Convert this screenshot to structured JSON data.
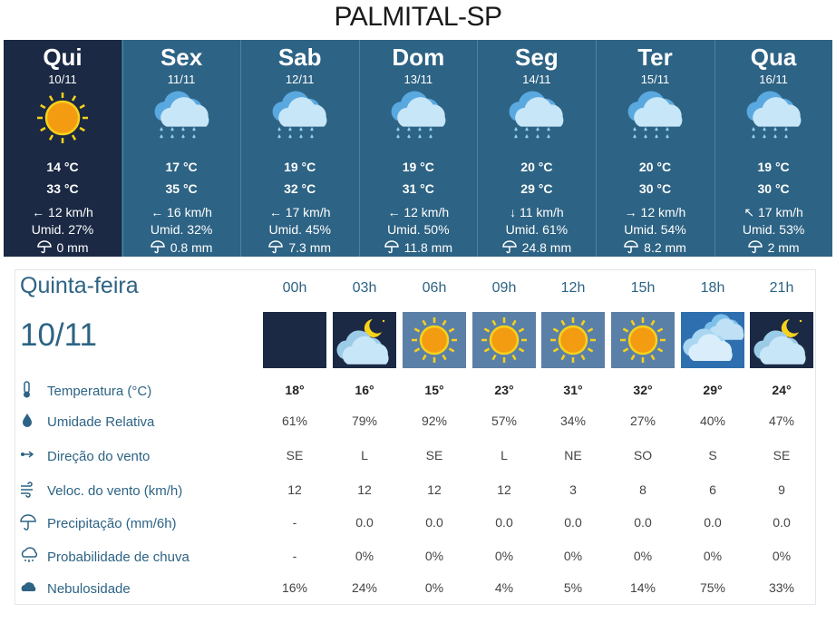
{
  "header": {
    "title": "PALMITAL-SP"
  },
  "days": [
    {
      "day": "Qui",
      "date": "10/11",
      "min": "14 °C",
      "max": "33 °C",
      "wind": "← 12 km/h",
      "humidity": "Umid. 27%",
      "rain": "0 mm"
    },
    {
      "day": "Sex",
      "date": "11/11",
      "min": "17 °C",
      "max": "35 °C",
      "wind": "← 16 km/h",
      "humidity": "Umid. 32%",
      "rain": "0.8 mm"
    },
    {
      "day": "Sab",
      "date": "12/11",
      "min": "19 °C",
      "max": "32 °C",
      "wind": "← 17 km/h",
      "humidity": "Umid. 45%",
      "rain": "7.3 mm"
    },
    {
      "day": "Dom",
      "date": "13/11",
      "min": "19 °C",
      "max": "31 °C",
      "wind": "← 12 km/h",
      "humidity": "Umid. 50%",
      "rain": "11.8 mm"
    },
    {
      "day": "Seg",
      "date": "14/11",
      "min": "20 °C",
      "max": "29 °C",
      "wind": "↓ 11 km/h",
      "humidity": "Umid. 61%",
      "rain": "24.8 mm"
    },
    {
      "day": "Ter",
      "date": "15/11",
      "min": "20 °C",
      "max": "30 °C",
      "wind": "→ 12 km/h",
      "humidity": "Umid. 54%",
      "rain": "8.2 mm"
    },
    {
      "day": "Qua",
      "date": "16/11",
      "min": "19 °C",
      "max": "30 °C",
      "wind": "↖ 17 km/h",
      "humidity": "Umid. 53%",
      "rain": "2 mm"
    }
  ],
  "detail": {
    "day": "Quinta-feira",
    "date": "10/11",
    "hours": [
      "00h",
      "03h",
      "06h",
      "09h",
      "12h",
      "15h",
      "18h",
      "21h"
    ],
    "rows": [
      {
        "label": "Temperatura (°C)",
        "values": [
          "18°",
          "16°",
          "15°",
          "23°",
          "31°",
          "32°",
          "29°",
          "24°"
        ]
      },
      {
        "label": "Umidade Relativa",
        "values": [
          "61%",
          "79%",
          "92%",
          "57%",
          "34%",
          "27%",
          "40%",
          "47%"
        ]
      },
      {
        "label": "Direção do vento",
        "values": [
          "SE",
          "L",
          "SE",
          "L",
          "NE",
          "SO",
          "S",
          "SE"
        ]
      },
      {
        "label": "Veloc. do vento (km/h)",
        "values": [
          "12",
          "12",
          "12",
          "12",
          "3",
          "8",
          "6",
          "9"
        ]
      },
      {
        "label": "Precipitação (mm/6h)",
        "values": [
          "-",
          "0.0",
          "0.0",
          "0.0",
          "0.0",
          "0.0",
          "0.0",
          "0.0"
        ]
      },
      {
        "label": "Probabilidade de chuva",
        "values": [
          "-",
          "0%",
          "0%",
          "0%",
          "0%",
          "0%",
          "0%",
          "0%"
        ]
      },
      {
        "label": "Nebulosidade",
        "values": [
          "16%",
          "24%",
          "0%",
          "4%",
          "5%",
          "14%",
          "75%",
          "33%"
        ]
      }
    ]
  }
}
